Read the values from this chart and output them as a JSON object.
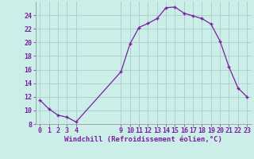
{
  "x": [
    0,
    1,
    2,
    3,
    4,
    9,
    10,
    11,
    12,
    13,
    14,
    15,
    16,
    17,
    18,
    19,
    20,
    21,
    22,
    23
  ],
  "y": [
    11.5,
    10.2,
    9.3,
    9.0,
    8.3,
    15.7,
    19.8,
    22.2,
    22.8,
    23.5,
    25.1,
    25.2,
    24.3,
    23.9,
    23.5,
    22.7,
    20.2,
    16.4,
    13.3,
    12.0
  ],
  "line_color": "#7b1fa2",
  "marker_color": "#7b1fa2",
  "bg_color": "#cceee8",
  "grid_color": "#aacccc",
  "xlabel": "Windchill (Refroidissement éolien,°C)",
  "xlabel_color": "#7b1fa2",
  "tick_color": "#7b1fa2",
  "ylim": [
    8,
    26
  ],
  "xlim": [
    -0.5,
    23.5
  ],
  "yticks": [
    8,
    10,
    12,
    14,
    16,
    18,
    20,
    22,
    24
  ],
  "xticks": [
    0,
    1,
    2,
    3,
    4,
    9,
    10,
    11,
    12,
    13,
    14,
    15,
    16,
    17,
    18,
    19,
    20,
    21,
    22,
    23
  ],
  "font_family": "monospace",
  "tick_fontsize": 6.0,
  "xlabel_fontsize": 6.5
}
